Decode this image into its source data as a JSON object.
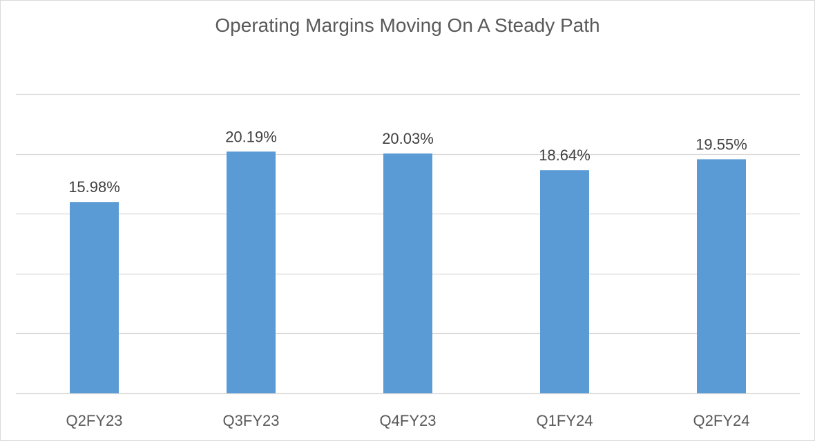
{
  "chart_data": {
    "type": "bar",
    "title": "Operating Margins Moving On A Steady Path",
    "categories": [
      "Q2FY23",
      "Q3FY23",
      "Q4FY23",
      "Q1FY24",
      "Q2FY24"
    ],
    "values": [
      15.98,
      20.19,
      20.03,
      18.64,
      19.55
    ],
    "data_labels": [
      "15.98%",
      "20.19%",
      "20.03%",
      "18.64%",
      "19.55%"
    ],
    "xlabel": "",
    "ylabel": "",
    "ylim": [
      0,
      25
    ],
    "grid": true,
    "legend": "none",
    "bar_color": "#5b9bd5",
    "grid_color": "#d9d9d9"
  }
}
